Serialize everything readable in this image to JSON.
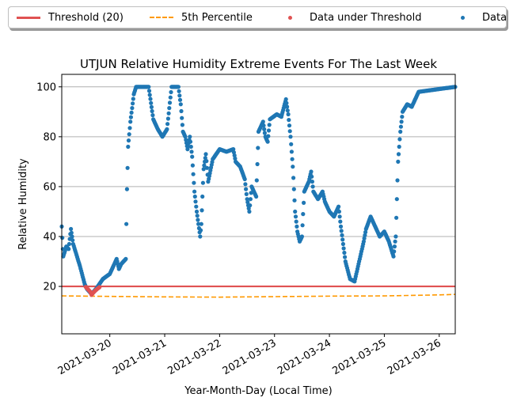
{
  "legend": {
    "items": [
      {
        "label": "Threshold (20)",
        "kind": "solid",
        "color": "#e05252"
      },
      {
        "label": "5th Percentile",
        "kind": "dash",
        "color": "#ff9900"
      },
      {
        "label": "Data under Threshold",
        "kind": "dot",
        "color": "#e05252"
      },
      {
        "label": "Data",
        "kind": "dot",
        "color": "#1f77b4"
      }
    ]
  },
  "chart_data": {
    "type": "scatter",
    "title": "UTJUN Relative Humidity Extreme Events For The Last Week",
    "xlabel": "Year-Month-Day (Local Time)",
    "ylabel": "Relative Humidity",
    "xlim": [
      "2021-03-19T03:00",
      "2021-03-26T07:00"
    ],
    "ylim": [
      1,
      105
    ],
    "xticks": [
      "2021-03-20",
      "2021-03-21",
      "2021-03-22",
      "2021-03-23",
      "2021-03-24",
      "2021-03-25",
      "2021-03-26"
    ],
    "yticks": [
      20,
      40,
      60,
      80,
      100
    ],
    "grid": "horizontal",
    "legend_placement": "top",
    "threshold": {
      "name": "Threshold (20)",
      "value": 20,
      "color": "#e05252"
    },
    "percentile_5th": {
      "name": "5th Percentile",
      "color": "#ff9900",
      "points": [
        [
          "2021-03-19T03:00",
          16.2
        ],
        [
          "2021-03-20T00:00",
          16.0
        ],
        [
          "2021-03-21T00:00",
          15.8
        ],
        [
          "2021-03-22T00:00",
          15.7
        ],
        [
          "2021-03-23T00:00",
          15.9
        ],
        [
          "2021-03-24T00:00",
          16.1
        ],
        [
          "2021-03-25T00:00",
          16.2
        ],
        [
          "2021-03-26T00:00",
          16.6
        ],
        [
          "2021-03-26T07:00",
          16.8
        ]
      ]
    },
    "series": [
      {
        "name": "Data",
        "color": "#1f77b4",
        "keypoints": [
          [
            "2021-03-19T03:00",
            44
          ],
          [
            "2021-03-19T03:40",
            32
          ],
          [
            "2021-03-19T05:00",
            36
          ],
          [
            "2021-03-19T06:00",
            35
          ],
          [
            "2021-03-19T07:00",
            43
          ],
          [
            "2021-03-19T08:00",
            37
          ],
          [
            "2021-03-19T11:00",
            28
          ],
          [
            "2021-03-19T13:00",
            21
          ],
          [
            "2021-03-19T14:00",
            19
          ],
          [
            "2021-03-19T16:00",
            17
          ],
          [
            "2021-03-19T18:00",
            19
          ],
          [
            "2021-03-19T21:00",
            23
          ],
          [
            "2021-03-20T00:00",
            25
          ],
          [
            "2021-03-20T02:00",
            29
          ],
          [
            "2021-03-20T03:00",
            31
          ],
          [
            "2021-03-20T04:00",
            27
          ],
          [
            "2021-03-20T05:00",
            29
          ],
          [
            "2021-03-20T07:00",
            31
          ],
          [
            "2021-03-20T07:30",
            59
          ],
          [
            "2021-03-20T08:00",
            76
          ],
          [
            "2021-03-20T09:00",
            86
          ],
          [
            "2021-03-20T10:30",
            97
          ],
          [
            "2021-03-20T11:30",
            100
          ],
          [
            "2021-03-20T17:00",
            100
          ],
          [
            "2021-03-20T19:00",
            87
          ],
          [
            "2021-03-20T21:00",
            83
          ],
          [
            "2021-03-20T23:00",
            80
          ],
          [
            "2021-03-21T01:00",
            83
          ],
          [
            "2021-03-21T03:00",
            100
          ],
          [
            "2021-03-21T06:00",
            100
          ],
          [
            "2021-03-21T07:00",
            93
          ],
          [
            "2021-03-21T08:00",
            82
          ],
          [
            "2021-03-21T09:00",
            80
          ],
          [
            "2021-03-21T10:00",
            75
          ],
          [
            "2021-03-21T11:00",
            80
          ],
          [
            "2021-03-21T12:00",
            72
          ],
          [
            "2021-03-21T13:00",
            58
          ],
          [
            "2021-03-21T14:00",
            50
          ],
          [
            "2021-03-21T15:30",
            40
          ],
          [
            "2021-03-21T16:00",
            45
          ],
          [
            "2021-03-21T17:00",
            67
          ],
          [
            "2021-03-21T18:00",
            73
          ],
          [
            "2021-03-21T19:00",
            62
          ],
          [
            "2021-03-21T21:00",
            71
          ],
          [
            "2021-03-22T00:00",
            75
          ],
          [
            "2021-03-22T03:00",
            74
          ],
          [
            "2021-03-22T06:00",
            75
          ],
          [
            "2021-03-22T07:00",
            70
          ],
          [
            "2021-03-22T09:00",
            68
          ],
          [
            "2021-03-22T11:00",
            63
          ],
          [
            "2021-03-22T12:00",
            55
          ],
          [
            "2021-03-22T13:00",
            50
          ],
          [
            "2021-03-22T14:00",
            60
          ],
          [
            "2021-03-22T16:00",
            56
          ],
          [
            "2021-03-22T17:00",
            82
          ],
          [
            "2021-03-22T19:00",
            86
          ],
          [
            "2021-03-22T20:00",
            80
          ],
          [
            "2021-03-22T21:00",
            78
          ],
          [
            "2021-03-22T22:00",
            87
          ],
          [
            "2021-03-23T01:00",
            89
          ],
          [
            "2021-03-23T03:00",
            88
          ],
          [
            "2021-03-23T05:00",
            95
          ],
          [
            "2021-03-23T06:00",
            89
          ],
          [
            "2021-03-23T07:00",
            80
          ],
          [
            "2021-03-23T08:00",
            68
          ],
          [
            "2021-03-23T09:00",
            50
          ],
          [
            "2021-03-23T10:00",
            42
          ],
          [
            "2021-03-23T11:00",
            38
          ],
          [
            "2021-03-23T12:00",
            40
          ],
          [
            "2021-03-23T13:00",
            58
          ],
          [
            "2021-03-23T15:00",
            62
          ],
          [
            "2021-03-23T16:00",
            66
          ],
          [
            "2021-03-23T17:00",
            58
          ],
          [
            "2021-03-23T19:00",
            55
          ],
          [
            "2021-03-23T21:00",
            58
          ],
          [
            "2021-03-23T22:00",
            54
          ],
          [
            "2021-03-24T00:00",
            50
          ],
          [
            "2021-03-24T02:00",
            48
          ],
          [
            "2021-03-24T04:00",
            52
          ],
          [
            "2021-03-24T05:00",
            44
          ],
          [
            "2021-03-24T06:00",
            37
          ],
          [
            "2021-03-24T07:00",
            30
          ],
          [
            "2021-03-24T09:00",
            23
          ],
          [
            "2021-03-24T11:00",
            22
          ],
          [
            "2021-03-24T13:00",
            30
          ],
          [
            "2021-03-24T15:00",
            38
          ],
          [
            "2021-03-24T16:00",
            43
          ],
          [
            "2021-03-24T18:00",
            48
          ],
          [
            "2021-03-24T20:00",
            44
          ],
          [
            "2021-03-24T22:00",
            40
          ],
          [
            "2021-03-25T00:00",
            42
          ],
          [
            "2021-03-25T02:00",
            38
          ],
          [
            "2021-03-25T04:00",
            32
          ],
          [
            "2021-03-25T05:00",
            40
          ],
          [
            "2021-03-25T05:30",
            55
          ],
          [
            "2021-03-25T06:00",
            70
          ],
          [
            "2021-03-25T07:00",
            82
          ],
          [
            "2021-03-25T08:00",
            90
          ],
          [
            "2021-03-25T10:00",
            93
          ],
          [
            "2021-03-25T12:00",
            92
          ],
          [
            "2021-03-25T15:00",
            98
          ],
          [
            "2021-03-26T07:00",
            100
          ]
        ]
      },
      {
        "name": "Data under Threshold",
        "color": "#e05252",
        "keypoints": [
          [
            "2021-03-19T13:30",
            19.8
          ],
          [
            "2021-03-19T14:30",
            18.8
          ],
          [
            "2021-03-19T15:30",
            17.8
          ],
          [
            "2021-03-19T16:00",
            16.6
          ],
          [
            "2021-03-19T16:30",
            17.2
          ],
          [
            "2021-03-19T17:30",
            18.2
          ],
          [
            "2021-03-19T18:30",
            19.0
          ],
          [
            "2021-03-19T19:30",
            19.7
          ]
        ]
      }
    ]
  }
}
